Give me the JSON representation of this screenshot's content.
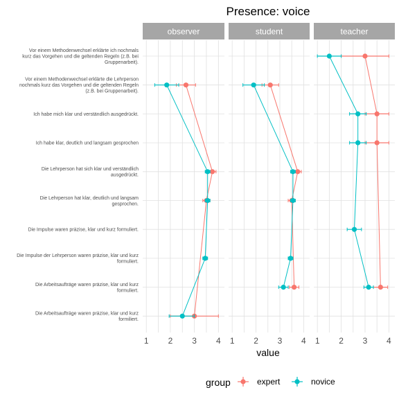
{
  "chart_data": {
    "type": "dot-errorbar",
    "title": "Presence: voice",
    "xlabel": "value",
    "ylabel": "",
    "xlim": [
      0.85,
      4.25
    ],
    "xticks": [
      1,
      2,
      3,
      4
    ],
    "panels": [
      "observer",
      "student",
      "teacher"
    ],
    "categories": [
      "Vor einem Methodenwechsel erklärte ich nochmals kurz das Vorgehen und die geltenden Regeln (z.B. bei Gruppenarbeit).",
      "Vor einem Methodenwechsel erklärte die Lehrperson nochmals kurz das Vorgehen und die geltenden Regeln (z.B. bei Gruppenarbeit).",
      "Ich habe mich klar und verständlich ausgedrückt.",
      "Ich habe klar, deutlich und langsam gesprochen",
      "Die Lehrperson hat sich klar und verständlich ausgedrückt.",
      "Die Lehrperson hat klar, deutlich und langsam gesprochen.",
      "Die Impulse waren präzise, klar und kurz formuliert.",
      "Die Impulse der Lehrperson waren präzise, klar und kurz formuliert.",
      "Die Arbeitsaufträge waren präzise, klar und kurz formuliert.",
      "Die Arbeitsaufträge waren präzise, klar und kurz formiliert."
    ],
    "category_lines": [
      [
        "Vor einem Methodenwechsel erklärte ich nochmals",
        "kurz das Vorgehen und die geltenden Regeln (z.B. bei",
        "Gruppenarbeit)."
      ],
      [
        "Vor einem Methodenwechsel erklärte die Lehrperson",
        "nochmals kurz das Vorgehen und die geltenden Regeln",
        "(z.B. bei Gruppenarbeit)."
      ],
      [
        "Ich habe mich klar und verständlich ausgedrückt."
      ],
      [
        "Ich habe klar, deutlich und langsam gesprochen"
      ],
      [
        "Die Lehrperson hat sich klar und verständlich",
        "ausgedrückt."
      ],
      [
        "Die Lehrperson hat klar, deutlich und langsam",
        "gesprochen."
      ],
      [
        "Die Impulse waren präzise, klar und kurz formuliert."
      ],
      [
        "Die Impulse der Lehrperson waren präzise, klar und kurz",
        "formuliert."
      ],
      [
        "Die Arbeitsaufträge waren präzise, klar und kurz",
        "formuliert."
      ],
      [
        "Die Arbeitsaufträge waren präzise, klar und kurz",
        "formiliert."
      ]
    ],
    "legend": {
      "title": "group",
      "position": "bottom",
      "items": [
        {
          "name": "expert",
          "color": "#f8766d"
        },
        {
          "name": "novice",
          "color": "#00bfc4"
        }
      ]
    },
    "series": [
      {
        "name": "expert",
        "color": "#f8766d",
        "panels": {
          "observer": [
            null,
            {
              "x": 2.65,
              "lo": 2.25,
              "hi": 3.05
            },
            null,
            null,
            {
              "x": 3.75,
              "lo": 3.6,
              "hi": 3.9
            },
            {
              "x": 3.5,
              "lo": 3.35,
              "hi": 3.65
            },
            null,
            null,
            null,
            {
              "x": 3.0,
              "lo": 2.0,
              "hi": 4.0
            }
          ],
          "student": [
            null,
            {
              "x": 2.6,
              "lo": 2.25,
              "hi": 2.95
            },
            null,
            null,
            {
              "x": 3.75,
              "lo": 3.6,
              "hi": 3.9
            },
            {
              "x": 3.5,
              "lo": 3.35,
              "hi": 3.65
            },
            null,
            null,
            {
              "x": 3.6,
              "lo": 3.4,
              "hi": 3.8
            },
            null
          ],
          "teacher": [
            {
              "x": 3.0,
              "lo": 2.0,
              "hi": 4.0
            },
            null,
            {
              "x": 3.5,
              "lo": 3.0,
              "hi": 4.0
            },
            {
              "x": 3.5,
              "lo": 3.0,
              "hi": 4.0
            },
            null,
            null,
            null,
            null,
            {
              "x": 3.65,
              "lo": 3.35,
              "hi": 3.95
            },
            null
          ]
        }
      },
      {
        "name": "novice",
        "color": "#00bfc4",
        "panels": {
          "observer": [
            null,
            {
              "x": 1.85,
              "lo": 1.35,
              "hi": 2.35
            },
            null,
            null,
            {
              "x": 3.55,
              "lo": 3.45,
              "hi": 3.65
            },
            {
              "x": 3.55,
              "lo": 3.45,
              "hi": 3.65
            },
            null,
            {
              "x": 3.45,
              "lo": 3.35,
              "hi": 3.55
            },
            null,
            {
              "x": 2.5,
              "lo": 1.95,
              "hi": 3.0
            }
          ],
          "student": [
            null,
            {
              "x": 1.9,
              "lo": 1.45,
              "hi": 2.35
            },
            null,
            null,
            {
              "x": 3.55,
              "lo": 3.45,
              "hi": 3.65
            },
            {
              "x": 3.55,
              "lo": 3.45,
              "hi": 3.65
            },
            null,
            {
              "x": 3.45,
              "lo": 3.35,
              "hi": 3.55
            },
            {
              "x": 3.15,
              "lo": 2.95,
              "hi": 3.35
            },
            null
          ],
          "teacher": [
            {
              "x": 1.5,
              "lo": 1.0,
              "hi": 2.0
            },
            null,
            {
              "x": 2.7,
              "lo": 2.35,
              "hi": 3.05
            },
            {
              "x": 2.7,
              "lo": 2.35,
              "hi": 3.05
            },
            null,
            null,
            {
              "x": 2.55,
              "lo": 2.25,
              "hi": 2.85
            },
            null,
            {
              "x": 3.15,
              "lo": 2.95,
              "hi": 3.35
            },
            null
          ]
        }
      }
    ],
    "grid": true
  }
}
